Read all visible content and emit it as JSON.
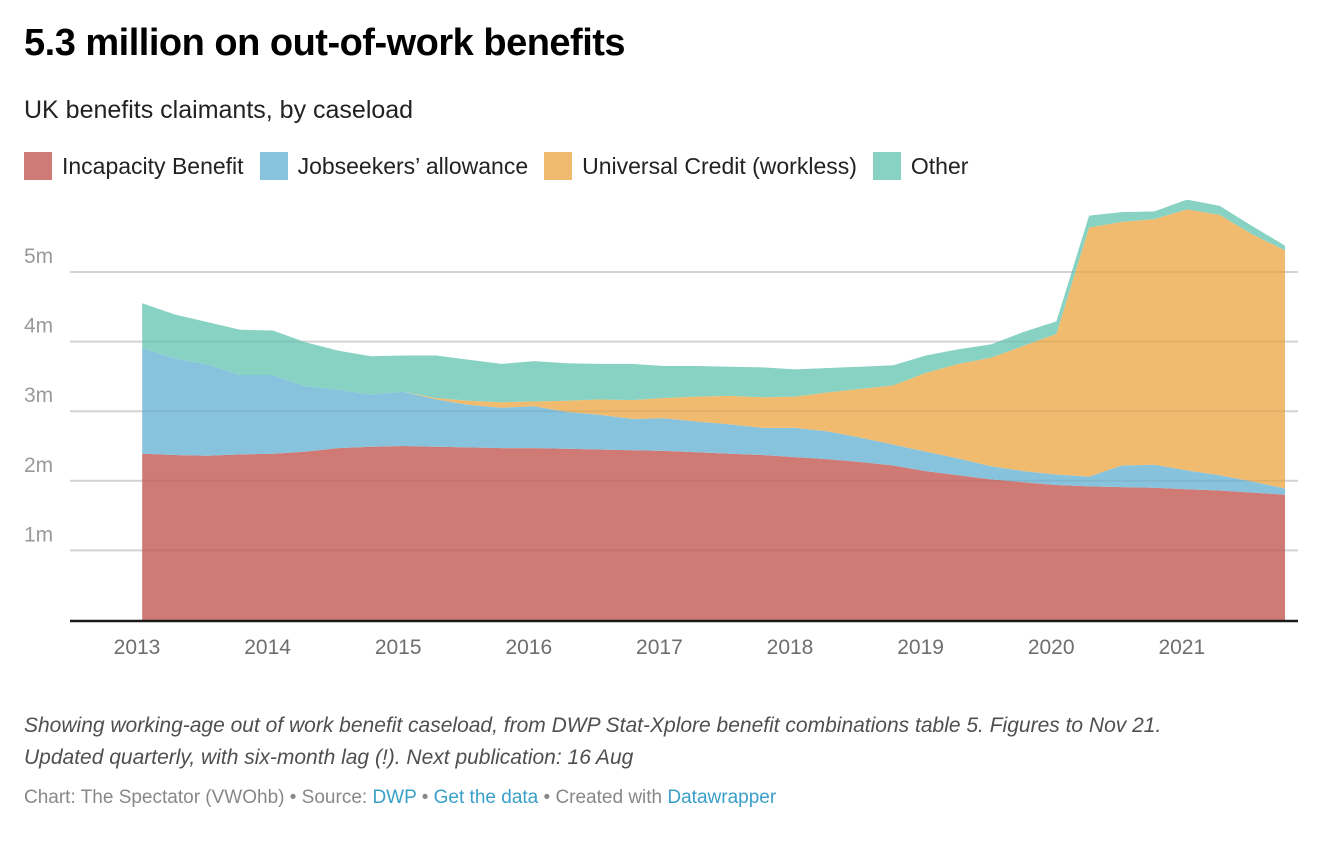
{
  "header": {
    "title": "5.3 million on out-of-work benefits",
    "subtitle": "UK benefits claimants, by caseload"
  },
  "legend": [
    {
      "label": "Incapacity Benefit",
      "color": "#d07a76"
    },
    {
      "label": "Jobseekers’ allowance",
      "color": "#87c3dc"
    },
    {
      "label": "Universal Credit (workless)",
      "color": "#f0bb6f"
    },
    {
      "label": "Other",
      "color": "#88d2c3"
    }
  ],
  "notes": {
    "line1": "Showing working-age out of work benefit caseload, from DWP Stat-Xplore benefit combinations table 5. Figures to Nov 21.",
    "line2": "Updated quarterly, with six-month lag (!). Next publication: 16 Aug"
  },
  "footer": {
    "prefix": "Chart: The Spectator (VWOhb) • Source: ",
    "source_link": "DWP",
    "sep1": " • ",
    "data_link": "Get the data",
    "sep2": " • Created with ",
    "tool_link": "Datawrapper"
  },
  "chart_data": {
    "type": "area",
    "stacked": true,
    "title": "5.3 million on out-of-work benefits",
    "subtitle": "UK benefits claimants, by caseload",
    "xlabel": "",
    "ylabel": "",
    "ylim": [
      0,
      5.8
    ],
    "yticks": [
      1,
      2,
      3,
      4,
      5
    ],
    "ytick_labels": [
      "1m",
      "2m",
      "3m",
      "4m",
      "5m"
    ],
    "xlim": [
      2013.0,
      2021.95
    ],
    "xticks": [
      2013,
      2014,
      2015,
      2016,
      2017,
      2018,
      2019,
      2020,
      2021
    ],
    "xtick_labels": [
      "2013",
      "2014",
      "2015",
      "2016",
      "2017",
      "2018",
      "2019",
      "2020",
      "2021"
    ],
    "grid": true,
    "legend_position": "top-left",
    "x": [
      "Feb 13",
      "May 13",
      "Aug 13",
      "Nov 13",
      "Feb 14",
      "May 14",
      "Aug 14",
      "Nov 14",
      "Feb 15",
      "May 15",
      "Aug 15",
      "Nov 15",
      "Feb 16",
      "May 16",
      "Aug 16",
      "Nov 16",
      "Feb 17",
      "May 17",
      "Aug 17",
      "Nov 17",
      "Feb 18",
      "May 18",
      "Aug 18",
      "Nov 18",
      "Feb 19",
      "May 19",
      "Aug 19",
      "Nov 19",
      "Feb 20",
      "May 20",
      "Aug 20",
      "Nov 20",
      "Feb 21",
      "May 21",
      "Aug 21",
      "Nov 21"
    ],
    "x_numeric": [
      2013.04,
      2013.29,
      2013.54,
      2013.79,
      2014.04,
      2014.29,
      2014.54,
      2014.79,
      2015.04,
      2015.29,
      2015.54,
      2015.79,
      2016.04,
      2016.29,
      2016.54,
      2016.79,
      2017.04,
      2017.29,
      2017.54,
      2017.79,
      2018.04,
      2018.29,
      2018.54,
      2018.79,
      2019.04,
      2019.29,
      2019.54,
      2019.79,
      2020.04,
      2020.29,
      2020.54,
      2020.79,
      2021.04,
      2021.29,
      2021.54,
      2021.79
    ],
    "series": [
      {
        "name": "Incapacity Benefit",
        "color": "#d07a76",
        "values": [
          2.39,
          2.37,
          2.36,
          2.38,
          2.39,
          2.42,
          2.47,
          2.49,
          2.5,
          2.49,
          2.48,
          2.47,
          2.47,
          2.46,
          2.45,
          2.44,
          2.43,
          2.41,
          2.39,
          2.37,
          2.34,
          2.31,
          2.27,
          2.22,
          2.14,
          2.08,
          2.02,
          1.98,
          1.94,
          1.92,
          1.91,
          1.9,
          1.88,
          1.86,
          1.83,
          1.8
        ]
      },
      {
        "name": "Jobseekers’ allowance",
        "color": "#87c3dc",
        "values": [
          1.52,
          1.39,
          1.31,
          1.14,
          1.13,
          0.94,
          0.84,
          0.75,
          0.78,
          0.68,
          0.61,
          0.58,
          0.6,
          0.53,
          0.5,
          0.45,
          0.47,
          0.44,
          0.42,
          0.39,
          0.42,
          0.4,
          0.35,
          0.3,
          0.28,
          0.24,
          0.19,
          0.16,
          0.15,
          0.14,
          0.31,
          0.33,
          0.27,
          0.22,
          0.16,
          0.09
        ]
      },
      {
        "name": "Universal Credit (workless)",
        "color": "#f0bb6f",
        "values": [
          0,
          0,
          0,
          0,
          0,
          0,
          0,
          0,
          0,
          0.02,
          0.06,
          0.08,
          0.07,
          0.16,
          0.22,
          0.27,
          0.29,
          0.36,
          0.41,
          0.44,
          0.45,
          0.56,
          0.7,
          0.85,
          1.13,
          1.36,
          1.56,
          1.8,
          2.02,
          3.58,
          3.5,
          3.53,
          3.75,
          3.74,
          3.55,
          3.42
        ]
      },
      {
        "name": "Other",
        "color": "#88d2c3",
        "values": [
          0.64,
          0.63,
          0.61,
          0.65,
          0.64,
          0.63,
          0.56,
          0.55,
          0.52,
          0.61,
          0.59,
          0.55,
          0.58,
          0.54,
          0.51,
          0.52,
          0.46,
          0.44,
          0.42,
          0.43,
          0.39,
          0.35,
          0.32,
          0.29,
          0.25,
          0.21,
          0.19,
          0.2,
          0.18,
          0.17,
          0.14,
          0.11,
          0.14,
          0.13,
          0.12,
          0.07
        ]
      }
    ]
  }
}
